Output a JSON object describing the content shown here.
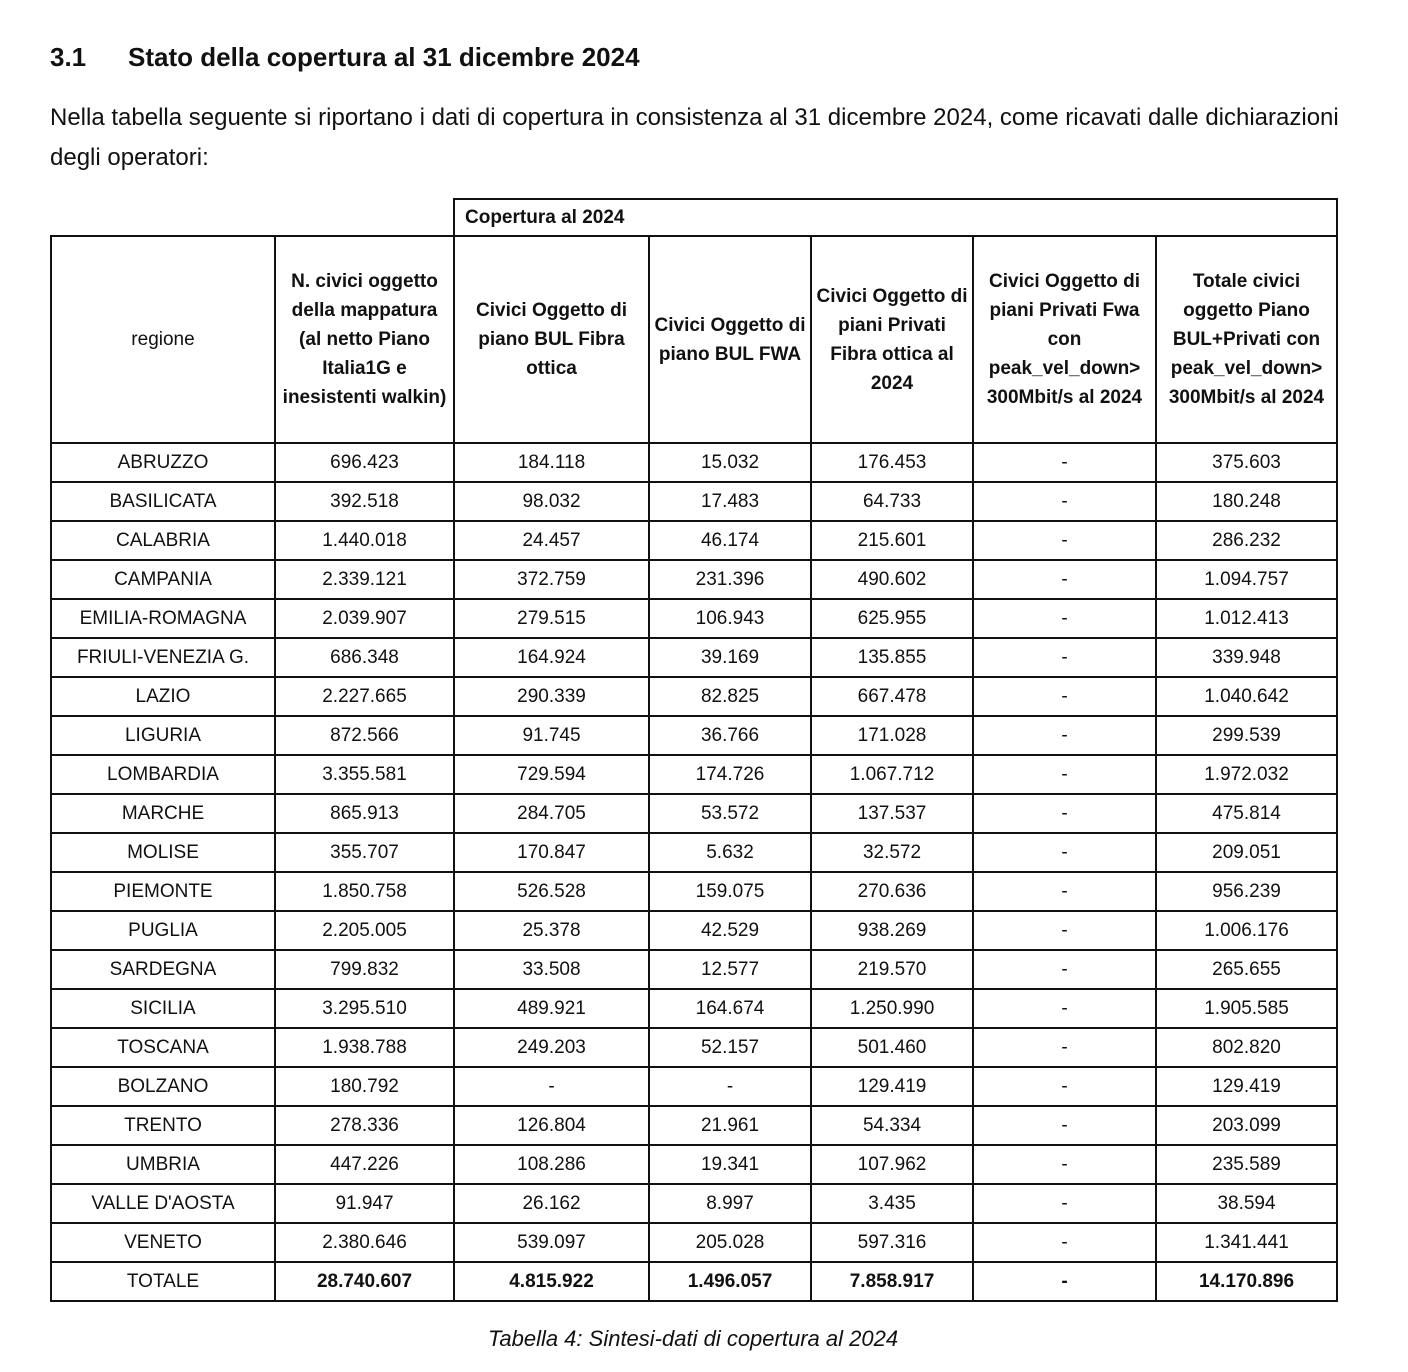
{
  "heading": {
    "number": "3.1",
    "title": "Stato della copertura al 31 dicembre 2024"
  },
  "paragraph": "Nella tabella seguente si riportano i dati di copertura in consistenza al 31 dicembre 2024, come ricavati dalle dichiarazioni degli operatori:",
  "table": {
    "group_header": "Copertura al 2024",
    "columns": [
      "regione",
      "N. civici oggetto della mappatura (al netto Piano Italia1G e inesistenti walkin)",
      "Civici Oggetto di piano BUL Fibra ottica",
      "Civici Oggetto di piano BUL FWA",
      "Civici Oggetto di piani Privati Fibra ottica al 2024",
      "Civici Oggetto di piani Privati Fwa con peak_vel_down> 300Mbit/s al 2024",
      "Totale civici oggetto Piano BUL+Privati con peak_vel_down> 300Mbit/s al 2024"
    ],
    "rows": [
      [
        "ABRUZZO",
        "696.423",
        "184.118",
        "15.032",
        "176.453",
        "-",
        "375.603"
      ],
      [
        "BASILICATA",
        "392.518",
        "98.032",
        "17.483",
        "64.733",
        "-",
        "180.248"
      ],
      [
        "CALABRIA",
        "1.440.018",
        "24.457",
        "46.174",
        "215.601",
        "-",
        "286.232"
      ],
      [
        "CAMPANIA",
        "2.339.121",
        "372.759",
        "231.396",
        "490.602",
        "-",
        "1.094.757"
      ],
      [
        "EMILIA-ROMAGNA",
        "2.039.907",
        "279.515",
        "106.943",
        "625.955",
        "-",
        "1.012.413"
      ],
      [
        "FRIULI-VENEZIA G.",
        "686.348",
        "164.924",
        "39.169",
        "135.855",
        "-",
        "339.948"
      ],
      [
        "LAZIO",
        "2.227.665",
        "290.339",
        "82.825",
        "667.478",
        "-",
        "1.040.642"
      ],
      [
        "LIGURIA",
        "872.566",
        "91.745",
        "36.766",
        "171.028",
        "-",
        "299.539"
      ],
      [
        "LOMBARDIA",
        "3.355.581",
        "729.594",
        "174.726",
        "1.067.712",
        "-",
        "1.972.032"
      ],
      [
        "MARCHE",
        "865.913",
        "284.705",
        "53.572",
        "137.537",
        "-",
        "475.814"
      ],
      [
        "MOLISE",
        "355.707",
        "170.847",
        "5.632",
        "32.572",
        "-",
        "209.051"
      ],
      [
        "PIEMONTE",
        "1.850.758",
        "526.528",
        "159.075",
        "270.636",
        "-",
        "956.239"
      ],
      [
        "PUGLIA",
        "2.205.005",
        "25.378",
        "42.529",
        "938.269",
        "-",
        "1.006.176"
      ],
      [
        "SARDEGNA",
        "799.832",
        "33.508",
        "12.577",
        "219.570",
        "-",
        "265.655"
      ],
      [
        "SICILIA",
        "3.295.510",
        "489.921",
        "164.674",
        "1.250.990",
        "-",
        "1.905.585"
      ],
      [
        "TOSCANA",
        "1.938.788",
        "249.203",
        "52.157",
        "501.460",
        "-",
        "802.820"
      ],
      [
        "BOLZANO",
        "180.792",
        "-",
        "-",
        "129.419",
        "-",
        "129.419"
      ],
      [
        "TRENTO",
        "278.336",
        "126.804",
        "21.961",
        "54.334",
        "-",
        "203.099"
      ],
      [
        "UMBRIA",
        "447.226",
        "108.286",
        "19.341",
        "107.962",
        "-",
        "235.589"
      ],
      [
        "VALLE D'AOSTA",
        "91.947",
        "26.162",
        "8.997",
        "3.435",
        "-",
        "38.594"
      ],
      [
        "VENETO",
        "2.380.646",
        "539.097",
        "205.028",
        "597.316",
        "-",
        "1.341.441"
      ]
    ],
    "total": [
      "TOTALE",
      "28.740.607",
      "4.815.922",
      "1.496.057",
      "7.858.917",
      "-",
      "14.170.896"
    ]
  },
  "caption": "Tabella 4: Sintesi-dati di copertura al 2024"
}
